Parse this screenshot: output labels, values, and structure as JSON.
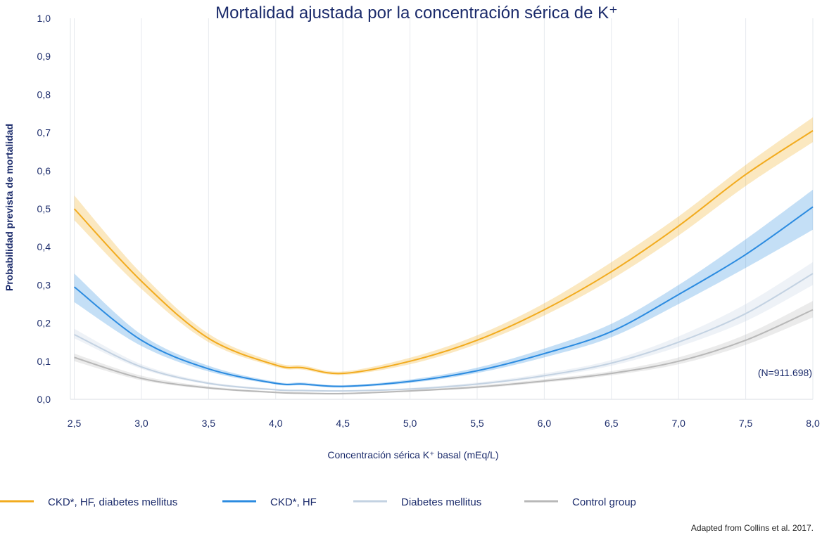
{
  "chart_data": {
    "type": "line",
    "title": "Mortalidad ajustada por la concentración sérica de K⁺",
    "xlabel": "Concentración sérica K⁺ basal (mEq/L)",
    "ylabel": "Probabilidad prevista de mortalidad",
    "xlim": [
      2.45,
      8.0
    ],
    "ylim": [
      0.0,
      1.0
    ],
    "x_ticks": [
      "2,5",
      "3,0",
      "3,5",
      "4,0",
      "4,5",
      "5,0",
      "5,5",
      "6,0",
      "6,5",
      "7,0",
      "7,5",
      "8,0"
    ],
    "x_tick_values": [
      2.5,
      3.0,
      3.5,
      4.0,
      4.5,
      5.0,
      5.5,
      6.0,
      6.5,
      7.0,
      7.5,
      8.0
    ],
    "y_ticks": [
      "0,0",
      "0,1",
      "0,2",
      "0,3",
      "0,4",
      "0,5",
      "0,6",
      "0,7",
      "0,8",
      "0,9",
      "1,0"
    ],
    "y_tick_values": [
      0.0,
      0.1,
      0.2,
      0.3,
      0.4,
      0.5,
      0.6,
      0.7,
      0.8,
      0.9,
      1.0
    ],
    "grid": "vertical",
    "legend_position": "bottom",
    "annotation": "(N=911.698)",
    "source": "Adapted from Collins et al. 2017.",
    "x": [
      2.5,
      3.0,
      3.5,
      4.0,
      4.2,
      4.5,
      5.0,
      5.5,
      6.0,
      6.5,
      7.0,
      7.5,
      8.0
    ],
    "series": [
      {
        "name": "CKD*, HF, diabetes mellitus",
        "color": "#f2ab1e",
        "values": [
          0.5,
          0.31,
          0.16,
          0.09,
          0.083,
          0.068,
          0.1,
          0.155,
          0.235,
          0.335,
          0.455,
          0.59,
          0.705
        ],
        "lower": [
          0.47,
          0.29,
          0.15,
          0.085,
          0.078,
          0.064,
          0.092,
          0.145,
          0.22,
          0.315,
          0.43,
          0.56,
          0.675
        ],
        "upper": [
          0.535,
          0.33,
          0.172,
          0.097,
          0.089,
          0.073,
          0.109,
          0.168,
          0.252,
          0.36,
          0.48,
          0.615,
          0.74
        ]
      },
      {
        "name": "CKD*, HF",
        "color": "#2b8be0",
        "values": [
          0.295,
          0.155,
          0.08,
          0.042,
          0.04,
          0.034,
          0.047,
          0.075,
          0.12,
          0.178,
          0.275,
          0.38,
          0.505
        ],
        "lower": [
          0.255,
          0.14,
          0.073,
          0.039,
          0.037,
          0.031,
          0.043,
          0.069,
          0.11,
          0.163,
          0.25,
          0.345,
          0.445
        ],
        "upper": [
          0.33,
          0.17,
          0.088,
          0.046,
          0.044,
          0.037,
          0.052,
          0.083,
          0.133,
          0.198,
          0.3,
          0.42,
          0.55
        ]
      },
      {
        "name": "Diabetes mellitus",
        "color": "#c3d2e2",
        "values": [
          0.17,
          0.085,
          0.042,
          0.025,
          0.023,
          0.022,
          0.027,
          0.04,
          0.062,
          0.095,
          0.15,
          0.225,
          0.33
        ],
        "lower": [
          0.16,
          0.08,
          0.039,
          0.023,
          0.021,
          0.02,
          0.025,
          0.037,
          0.057,
          0.088,
          0.138,
          0.205,
          0.3
        ],
        "upper": [
          0.185,
          0.092,
          0.046,
          0.028,
          0.026,
          0.024,
          0.03,
          0.044,
          0.068,
          0.103,
          0.165,
          0.25,
          0.36
        ]
      },
      {
        "name": "Control group",
        "color": "#b8b8b8",
        "values": [
          0.11,
          0.055,
          0.03,
          0.018,
          0.016,
          0.015,
          0.022,
          0.032,
          0.048,
          0.068,
          0.1,
          0.155,
          0.235
        ],
        "lower": [
          0.1,
          0.05,
          0.027,
          0.016,
          0.014,
          0.013,
          0.02,
          0.029,
          0.044,
          0.063,
          0.092,
          0.143,
          0.215
        ],
        "upper": [
          0.12,
          0.062,
          0.034,
          0.021,
          0.019,
          0.017,
          0.025,
          0.036,
          0.053,
          0.074,
          0.11,
          0.17,
          0.258
        ]
      }
    ]
  }
}
